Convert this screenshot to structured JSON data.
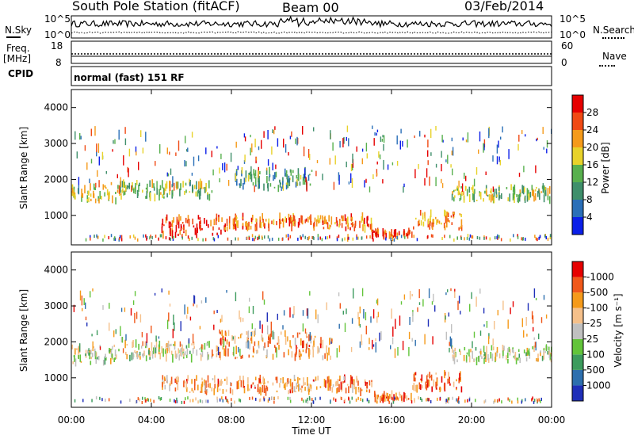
{
  "header": {
    "station": "South Pole Station (fitACF)",
    "beam": "Beam 00",
    "date": "03/Feb/2014"
  },
  "left_labels": {
    "nsky": "N.Sky",
    "freq_line1": "Freq.",
    "freq_line2": "[MHz]",
    "cpid": "CPID"
  },
  "right_labels": {
    "nsearch": "N.Search",
    "nave": "Nave"
  },
  "noise_axis": {
    "top": "10^5",
    "bottom": "10^0"
  },
  "freq_axis": {
    "left_top": "18",
    "left_bottom": "8",
    "right_top": "60",
    "right_bottom": "0"
  },
  "cpid_text": "normal (fast) 151 RF",
  "chart_data": [
    {
      "type": "heatmap",
      "name": "power-panel",
      "ylabel": "Slant Range [km]",
      "xlabel": "Time UT",
      "ylim": [
        180,
        4500
      ],
      "y_ticks": [
        1000,
        2000,
        3000,
        4000
      ],
      "x_ticks": [
        "00:00",
        "04:00",
        "08:00",
        "12:00",
        "16:00",
        "20:00",
        "00:00"
      ],
      "colorbar_label": "Power [dB]",
      "colorbar_ticks": [
        "4",
        "8",
        "12",
        "16",
        "20",
        "24",
        "28"
      ],
      "colors": [
        "#0b1fe8",
        "#2a6fb8",
        "#3f8f6b",
        "#58b04e",
        "#e8d22a",
        "#f59a1a",
        "#f04a14",
        "#e60000"
      ],
      "echo_bands": [
        {
          "t0": 0.0,
          "t1": 2.3,
          "r_center": 1650,
          "r_width": 500,
          "level": 0.55
        },
        {
          "t0": 2.3,
          "t1": 7.0,
          "r_center": 1700,
          "r_width": 420,
          "level": 0.45
        },
        {
          "t0": 4.5,
          "t1": 7.5,
          "r_center": 700,
          "r_width": 500,
          "level": 0.9
        },
        {
          "t0": 7.5,
          "t1": 15.0,
          "r_center": 800,
          "r_width": 350,
          "level": 0.75
        },
        {
          "t0": 15.0,
          "t1": 17.0,
          "r_center": 480,
          "r_width": 160,
          "level": 0.85
        },
        {
          "t0": 17.0,
          "t1": 19.5,
          "r_center": 850,
          "r_width": 450,
          "level": 0.7
        },
        {
          "t0": 19.0,
          "t1": 24.0,
          "r_center": 1600,
          "r_width": 380,
          "level": 0.5
        },
        {
          "t0": 8.0,
          "t1": 12.0,
          "r_center": 2000,
          "r_width": 500,
          "level": 0.35
        }
      ]
    },
    {
      "type": "heatmap",
      "name": "velocity-panel",
      "ylabel": "Slant Range [km]",
      "xlabel": "Time UT",
      "ylim": [
        180,
        4500
      ],
      "y_ticks": [
        1000,
        2000,
        3000,
        4000
      ],
      "x_ticks": [
        "00:00",
        "04:00",
        "08:00",
        "12:00",
        "16:00",
        "20:00",
        "00:00"
      ],
      "colorbar_label": "Velocity [m s⁻¹]",
      "colorbar_ticks": [
        "1000",
        "500",
        "100",
        "25",
        "-25",
        "-100",
        "-500",
        "-1000"
      ],
      "colors": [
        "#1f2fb8",
        "#2d6fae",
        "#3c9b5d",
        "#62c43a",
        "#c0c0c0",
        "#f5c08a",
        "#f59a1a",
        "#f0581a",
        "#e60000"
      ],
      "echo_bands": [
        {
          "t0": 0.0,
          "t1": 2.3,
          "r_center": 1650,
          "r_width": 500,
          "level": 0.5
        },
        {
          "t0": 2.3,
          "t1": 7.0,
          "r_center": 1750,
          "r_width": 420,
          "level": 0.5
        },
        {
          "t0": 19.0,
          "t1": 24.0,
          "r_center": 1650,
          "r_width": 380,
          "level": 0.5
        },
        {
          "t0": 4.5,
          "t1": 15.0,
          "r_center": 800,
          "r_width": 400,
          "level": 0.72
        },
        {
          "t0": 15.0,
          "t1": 17.0,
          "r_center": 480,
          "r_width": 160,
          "level": 0.75
        },
        {
          "t0": 17.0,
          "t1": 19.5,
          "r_center": 900,
          "r_width": 450,
          "level": 0.78
        },
        {
          "t0": 7.0,
          "t1": 13.0,
          "r_center": 1900,
          "r_width": 700,
          "level": 0.7
        }
      ]
    }
  ]
}
